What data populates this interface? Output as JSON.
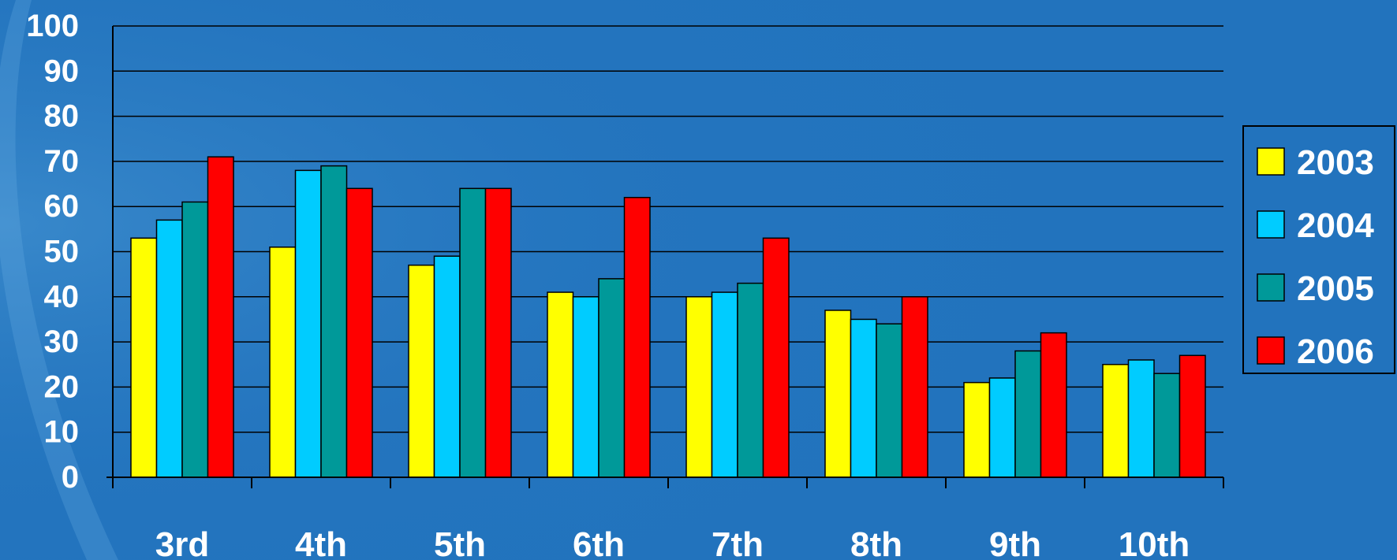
{
  "chart_data": {
    "type": "bar",
    "categories": [
      "3rd",
      "4th",
      "5th",
      "6th",
      "7th",
      "8th",
      "9th",
      "10th"
    ],
    "series": [
      {
        "name": "2003",
        "color": "#ffff00",
        "values": [
          53,
          51,
          47,
          41,
          40,
          37,
          21,
          25
        ]
      },
      {
        "name": "2004",
        "color": "#00ccff",
        "values": [
          57,
          68,
          49,
          40,
          41,
          35,
          22,
          26
        ]
      },
      {
        "name": "2005",
        "color": "#009999",
        "values": [
          61,
          69,
          64,
          44,
          43,
          34,
          28,
          23
        ]
      },
      {
        "name": "2006",
        "color": "#ff0000",
        "values": [
          71,
          64,
          64,
          62,
          53,
          40,
          32,
          27
        ]
      }
    ],
    "yticks": [
      0,
      10,
      20,
      30,
      40,
      50,
      60,
      70,
      80,
      90,
      100
    ],
    "ylim": [
      0,
      100
    ],
    "grid": true,
    "legend": "right",
    "title": "",
    "xlabel": "",
    "ylabel": ""
  }
}
